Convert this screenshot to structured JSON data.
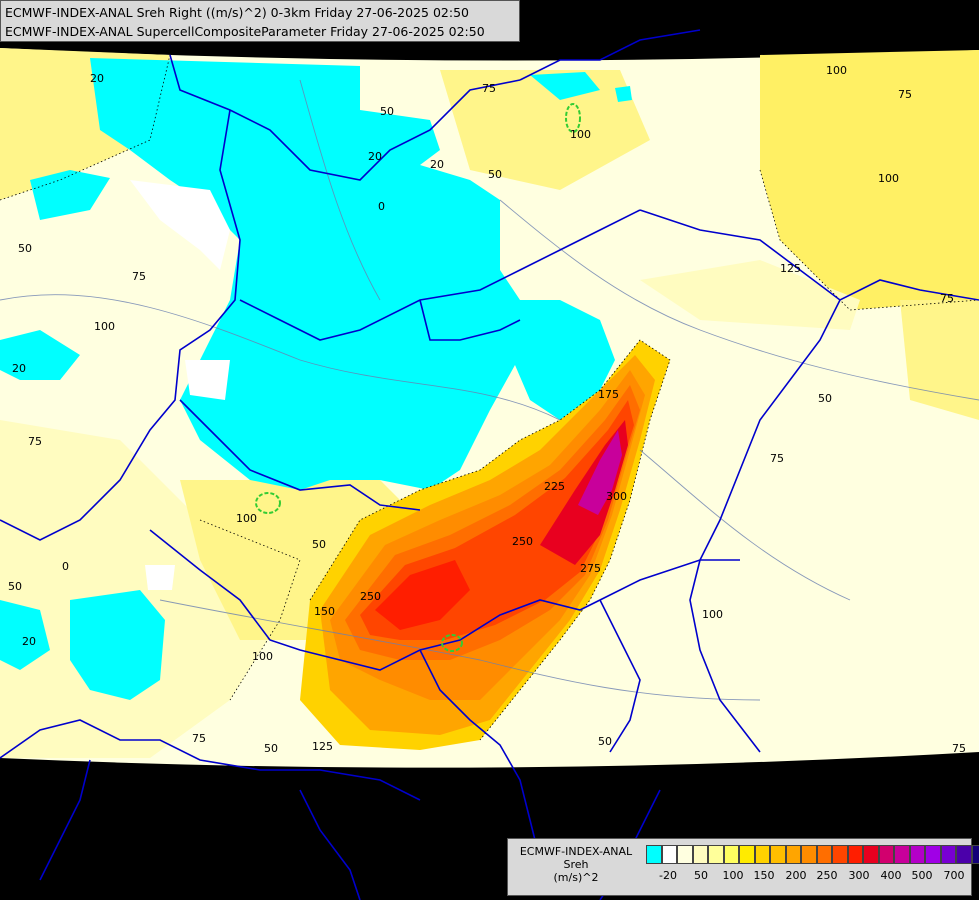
{
  "header": {
    "line1": "ECMWF-INDEX-ANAL Sreh Right ((m/s)^2) 0-3km Friday 27-06-2025 02:50",
    "line2": "ECMWF-INDEX-ANAL SupercellCompositeParameter Friday 27-06-2025 02:50"
  },
  "legend": {
    "title_line1": "ECMWF-INDEX-ANAL",
    "title_line2": "Sreh",
    "title_line3": "(m/s)^2",
    "colors": [
      "#00ffff",
      "#ffffff",
      "#ffffe0",
      "#fffcc0",
      "#ffff9a",
      "#ffff60",
      "#ffeb00",
      "#ffd200",
      "#ffbe00",
      "#ffa500",
      "#ff8c00",
      "#ff6e00",
      "#ff4500",
      "#ff1e00",
      "#e8001f",
      "#d2006e",
      "#c8009b",
      "#b400c8",
      "#a000e6",
      "#7800d2",
      "#4b00aa",
      "#140078"
    ],
    "ticks": [
      "-20",
      "50",
      "100",
      "150",
      "200",
      "250",
      "300",
      "400",
      "500",
      "700"
    ]
  },
  "map_labels": {
    "l20a": "20",
    "l50a": "50",
    "l20b": "20",
    "l0a": "0",
    "l20c": "20",
    "l75a": "75",
    "l100a": "100",
    "l50b": "50",
    "l75b": "75",
    "l100b": "100",
    "l75c": "75",
    "l100c": "100",
    "l125a": "125",
    "l75d": "75",
    "l50c": "50",
    "l75e": "75",
    "l100d": "100",
    "l125b": "125",
    "l50d": "50",
    "l150": "150",
    "l250a": "250",
    "l225": "225",
    "l250b": "250",
    "l300": "300",
    "l175": "175",
    "l275": "275",
    "l100e": "100",
    "l75f": "75",
    "l50e": "50",
    "l125c": "125",
    "l50f": "50",
    "l100f": "100",
    "l75g": "75",
    "l0b": "0",
    "l50g": "50",
    "l20d": "20",
    "l75h": "75",
    "l100g": "100",
    "l50h": "50",
    "l20e": "20"
  }
}
